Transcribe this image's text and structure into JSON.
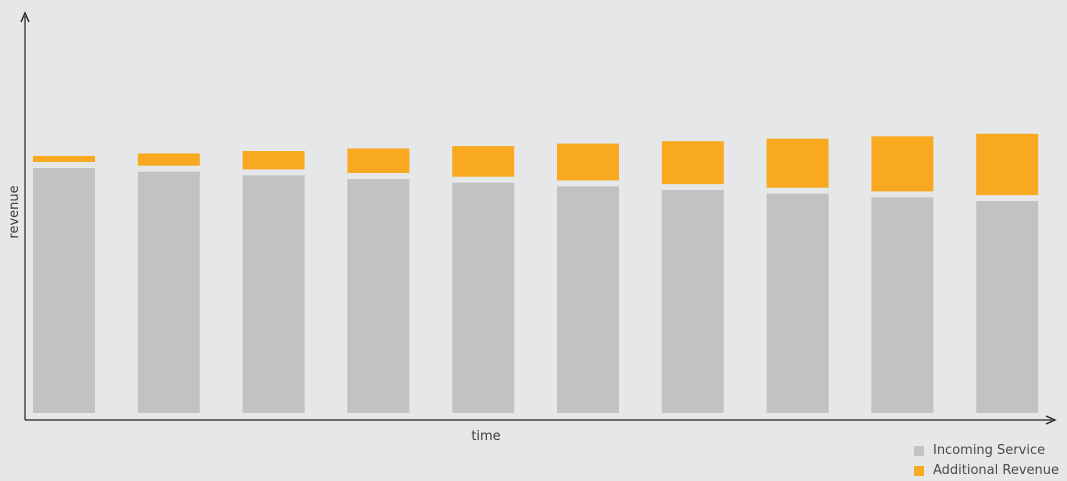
{
  "chart_data": {
    "type": "bar",
    "stacked": true,
    "title": "",
    "xlabel": "time",
    "ylabel": "revenue",
    "categories": [
      "",
      "",
      "",
      "",
      "",
      "",
      "",
      "",
      "",
      ""
    ],
    "series": [
      {
        "name": "Incoming Service",
        "color": "#c1c2c4",
        "values": [
          100,
          98.5,
          97,
          95.5,
          94,
          92.5,
          91,
          89.5,
          88,
          86.5
        ]
      },
      {
        "name": "Additional Revenue",
        "color": "#f8a920",
        "values": [
          2.5,
          5,
          7.5,
          10,
          12.5,
          15,
          17.5,
          20,
          22.5,
          25
        ]
      }
    ],
    "ylim": [
      0,
      130
    ],
    "grid": false,
    "legend_position": "bottom-right"
  },
  "legend": {
    "items": [
      {
        "label": "Incoming Service",
        "color": "#c1c2c4"
      },
      {
        "label": "Additional Revenue",
        "color": "#f8a920"
      }
    ]
  },
  "colors": {
    "background": "#e6e7e8",
    "axis": "#222222"
  }
}
